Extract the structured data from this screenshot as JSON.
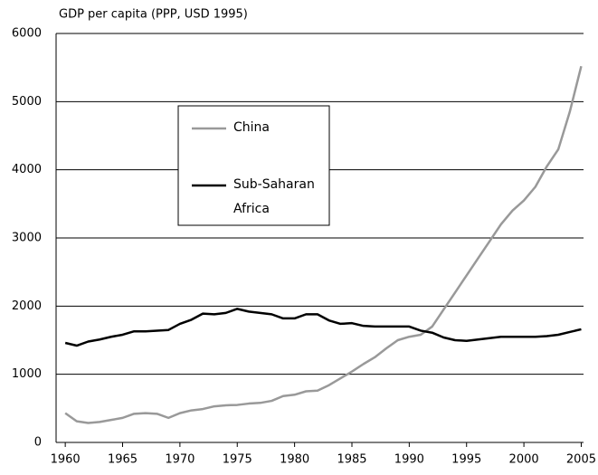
{
  "chart_data": {
    "type": "line",
    "y_axis_label": "GDP per capita (PPP, USD 1995)",
    "x": [
      1960,
      1961,
      1962,
      1963,
      1964,
      1965,
      1966,
      1967,
      1968,
      1969,
      1970,
      1971,
      1972,
      1973,
      1974,
      1975,
      1976,
      1977,
      1978,
      1979,
      1980,
      1981,
      1982,
      1983,
      1984,
      1985,
      1986,
      1987,
      1988,
      1989,
      1990,
      1991,
      1992,
      1993,
      1994,
      1995,
      1996,
      1997,
      1998,
      1999,
      2000,
      2001,
      2002,
      2003,
      2004,
      2005
    ],
    "series": [
      {
        "name": "China",
        "color": "#999999",
        "values": [
          430,
          310,
          285,
          300,
          330,
          360,
          420,
          430,
          420,
          360,
          430,
          470,
          490,
          530,
          545,
          550,
          570,
          580,
          610,
          680,
          700,
          750,
          760,
          840,
          940,
          1040,
          1150,
          1250,
          1380,
          1500,
          1550,
          1580,
          1700,
          1950,
          2200,
          2450,
          2700,
          2950,
          3200,
          3400,
          3550,
          3750,
          4050,
          4300,
          4850,
          5520
        ]
      },
      {
        "name": "Sub-Saharan Africa",
        "color": "#000000",
        "values": [
          1460,
          1420,
          1480,
          1510,
          1550,
          1580,
          1630,
          1630,
          1640,
          1650,
          1740,
          1800,
          1890,
          1880,
          1900,
          1960,
          1920,
          1900,
          1880,
          1820,
          1820,
          1880,
          1880,
          1790,
          1740,
          1750,
          1710,
          1700,
          1700,
          1700,
          1700,
          1640,
          1610,
          1540,
          1500,
          1490,
          1510,
          1530,
          1550,
          1550,
          1550,
          1550,
          1560,
          1580,
          1620,
          1660
        ]
      }
    ],
    "xlim": [
      1959.2,
      2005.2
    ],
    "xticks": [
      1960,
      1965,
      1970,
      1975,
      1980,
      1985,
      1990,
      1995,
      2000,
      2005
    ],
    "ylim": [
      0,
      6000
    ],
    "yticks": [
      0,
      1000,
      2000,
      3000,
      4000,
      5000,
      6000
    ],
    "grid": true
  }
}
